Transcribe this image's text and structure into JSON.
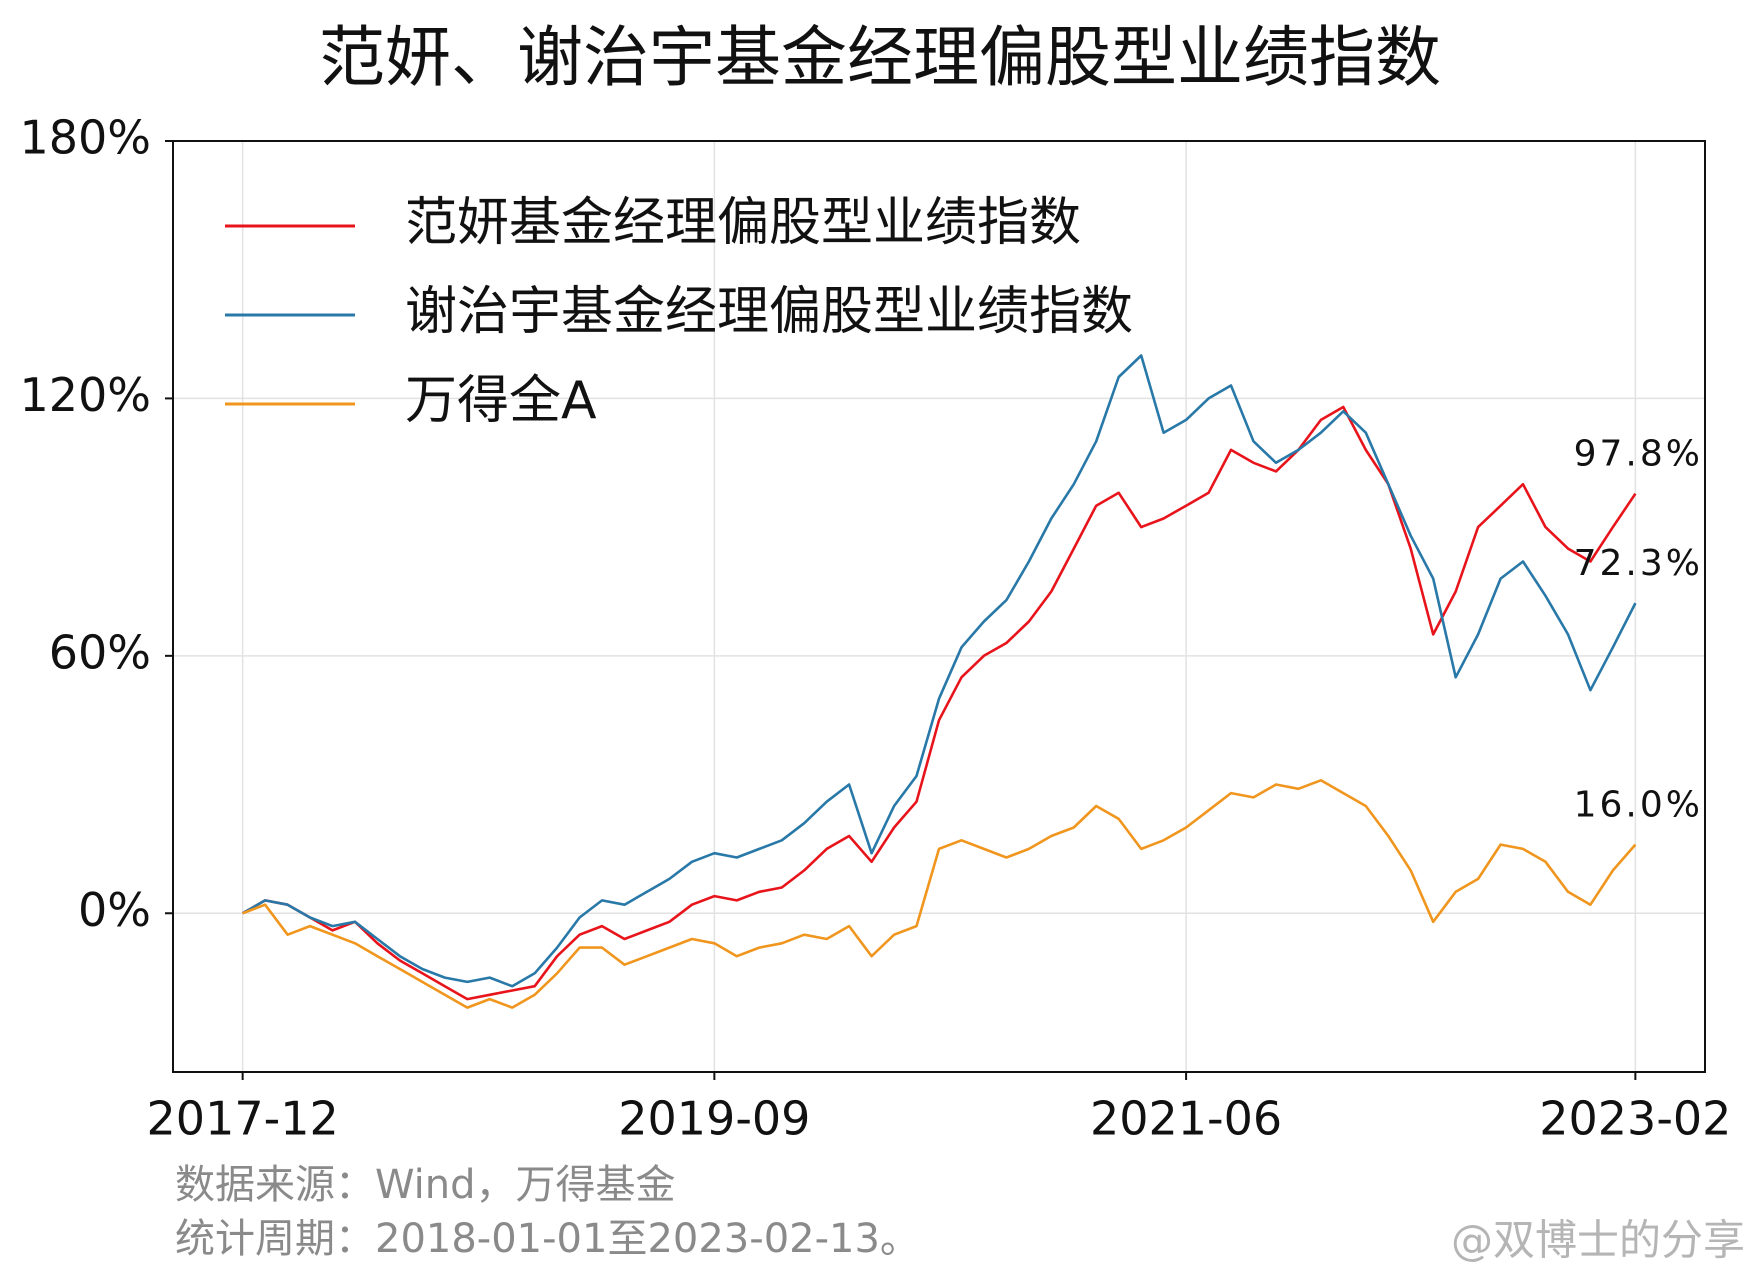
{
  "chart_data": {
    "type": "line",
    "title": "范妍、谢治宇基金经理偏股型业绩指数",
    "x": [
      "2017-12",
      "2018-01",
      "2018-02",
      "2018-03",
      "2018-04",
      "2018-05",
      "2018-06",
      "2018-07",
      "2018-08",
      "2018-09",
      "2018-10",
      "2018-11",
      "2018-12",
      "2019-01",
      "2019-02",
      "2019-03",
      "2019-04",
      "2019-05",
      "2019-06",
      "2019-07",
      "2019-08",
      "2019-09",
      "2019-10",
      "2019-11",
      "2019-12",
      "2020-01",
      "2020-02",
      "2020-03",
      "2020-04",
      "2020-05",
      "2020-06",
      "2020-07",
      "2020-08",
      "2020-09",
      "2020-10",
      "2020-11",
      "2020-12",
      "2021-01",
      "2021-02",
      "2021-03",
      "2021-04",
      "2021-05",
      "2021-06",
      "2021-07",
      "2021-08",
      "2021-09",
      "2021-10",
      "2021-11",
      "2021-12",
      "2022-01",
      "2022-02",
      "2022-03",
      "2022-04",
      "2022-05",
      "2022-06",
      "2022-07",
      "2022-08",
      "2022-09",
      "2022-10",
      "2022-11",
      "2022-12",
      "2023-01",
      "2023-02"
    ],
    "xticks": [
      "2017-12",
      "2019-09",
      "2021-06",
      "2023-02"
    ],
    "ylim": [
      -37,
      180
    ],
    "yticks": [
      {
        "value": 0,
        "label": "0%"
      },
      {
        "value": 60,
        "label": "60%"
      },
      {
        "value": 120,
        "label": "120%"
      },
      {
        "value": 180,
        "label": "180%"
      }
    ],
    "grid": true,
    "legend": "upper left",
    "series": [
      {
        "name": "范妍基金经理偏股型业绩指数",
        "color": "#e8141b",
        "values": [
          0,
          3,
          2,
          -1,
          -4,
          -2,
          -7,
          -11,
          -14,
          -17,
          -20,
          -19,
          -18,
          -17,
          -10,
          -5,
          -3,
          -6,
          -4,
          -2,
          2,
          4,
          3,
          5,
          6,
          10,
          15,
          18,
          12,
          20,
          26,
          45,
          55,
          60,
          63,
          68,
          75,
          85,
          95,
          98,
          90,
          92,
          95,
          98,
          108,
          105,
          103,
          108,
          115,
          118,
          108,
          100,
          85,
          65,
          75,
          90,
          95,
          100,
          90,
          85,
          82,
          90,
          97.8
        ],
        "value_labels": [
          null,
          null,
          null,
          null,
          null,
          null,
          null,
          null,
          null,
          null,
          null,
          null,
          null,
          null,
          null,
          null,
          null,
          null,
          null,
          null,
          null,
          null,
          null,
          null,
          null,
          null,
          null,
          null,
          null,
          null,
          null,
          null,
          null,
          null,
          null,
          null,
          null,
          null,
          null,
          null,
          null,
          null,
          null,
          null,
          null,
          null,
          null,
          null,
          null,
          null,
          null,
          null,
          null,
          null,
          null,
          null,
          null,
          null,
          null,
          null,
          null,
          null,
          "97.8%"
        ]
      },
      {
        "name": "谢治宇基金经理偏股型业绩指数",
        "color": "#2878a8",
        "values": [
          0,
          3,
          2,
          -1,
          -3,
          -2,
          -6,
          -10,
          -13,
          -15,
          -16,
          -15,
          -17,
          -14,
          -8,
          -1,
          3,
          2,
          5,
          8,
          12,
          14,
          13,
          15,
          17,
          21,
          26,
          30,
          14,
          25,
          32,
          50,
          62,
          68,
          73,
          82,
          92,
          100,
          110,
          125,
          130,
          112,
          115,
          120,
          123,
          110,
          105,
          108,
          112,
          117,
          112,
          100,
          88,
          78,
          55,
          65,
          78,
          82,
          74,
          65,
          52,
          62,
          72.3
        ],
        "value_labels": [
          null,
          null,
          null,
          null,
          null,
          null,
          null,
          null,
          null,
          null,
          null,
          null,
          null,
          null,
          null,
          null,
          null,
          null,
          null,
          null,
          null,
          null,
          null,
          null,
          null,
          null,
          null,
          null,
          null,
          null,
          null,
          null,
          null,
          null,
          null,
          null,
          null,
          null,
          null,
          null,
          null,
          null,
          null,
          null,
          null,
          null,
          null,
          null,
          null,
          null,
          null,
          null,
          null,
          null,
          null,
          null,
          null,
          null,
          null,
          null,
          null,
          null,
          "72.3%"
        ]
      },
      {
        "name": "万得全A",
        "color": "#f0961e",
        "values": [
          0,
          2,
          -5,
          -3,
          -5,
          -7,
          -10,
          -13,
          -16,
          -19,
          -22,
          -20,
          -22,
          -19,
          -14,
          -8,
          -8,
          -12,
          -10,
          -8,
          -6,
          -7,
          -10,
          -8,
          -7,
          -5,
          -6,
          -3,
          -10,
          -5,
          -3,
          15,
          17,
          15,
          13,
          15,
          18,
          20,
          25,
          22,
          15,
          17,
          20,
          24,
          28,
          27,
          30,
          29,
          31,
          28,
          25,
          18,
          10,
          -2,
          5,
          8,
          16,
          15,
          12,
          5,
          2,
          10,
          16.0
        ],
        "value_labels": [
          null,
          null,
          null,
          null,
          null,
          null,
          null,
          null,
          null,
          null,
          null,
          null,
          null,
          null,
          null,
          null,
          null,
          null,
          null,
          null,
          null,
          null,
          null,
          null,
          null,
          null,
          null,
          null,
          null,
          null,
          null,
          null,
          null,
          null,
          null,
          null,
          null,
          null,
          null,
          null,
          null,
          null,
          null,
          null,
          null,
          null,
          null,
          null,
          null,
          null,
          null,
          null,
          null,
          null,
          null,
          null,
          null,
          null,
          null,
          null,
          null,
          null,
          "16.0%"
        ]
      }
    ],
    "notes": [
      "数据来源：Wind，万得基金",
      "统计周期：2018-01-01至2023-02-13。"
    ],
    "watermark": "@双博士的分享"
  }
}
